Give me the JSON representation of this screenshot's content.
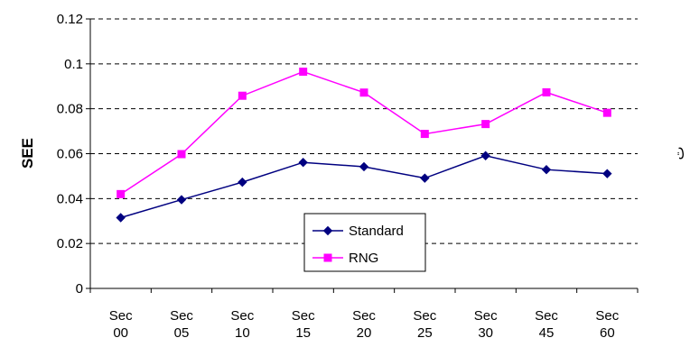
{
  "chart_data": {
    "type": "line",
    "categories": [
      "Sec 00",
      "Sec 05",
      "Sec 10",
      "Sec 15",
      "Sec 20",
      "Sec 25",
      "Sec 30",
      "Sec 45",
      "Sec 60"
    ],
    "category_lines": [
      [
        "Sec",
        "00"
      ],
      [
        "Sec",
        "05"
      ],
      [
        "Sec",
        "10"
      ],
      [
        "Sec",
        "15"
      ],
      [
        "Sec",
        "20"
      ],
      [
        "Sec",
        "25"
      ],
      [
        "Sec",
        "30"
      ],
      [
        "Sec",
        "45"
      ],
      [
        "Sec",
        "60"
      ]
    ],
    "series": [
      {
        "name": "Standard",
        "color": "#000080",
        "marker": "diamond",
        "values": [
          0.0315,
          0.0395,
          0.0473,
          0.0561,
          0.0542,
          0.0491,
          0.0591,
          0.0529,
          0.0511
        ]
      },
      {
        "name": "RNG",
        "color": "#ff00ff",
        "marker": "square",
        "values": [
          0.042,
          0.0598,
          0.0858,
          0.0965,
          0.0872,
          0.0688,
          0.0732,
          0.0873,
          0.0782
        ]
      }
    ],
    "ylabel": "SEE",
    "xlabel": "",
    "ylim": [
      0,
      0.12
    ],
    "yticks": [
      "0",
      "0.02",
      "0.04",
      "0.06",
      "0.08",
      "0.1",
      "0.12"
    ],
    "grid": "horizontal dashed",
    "legend_position": "lower-center inside plot",
    "side_mark": "ت"
  }
}
